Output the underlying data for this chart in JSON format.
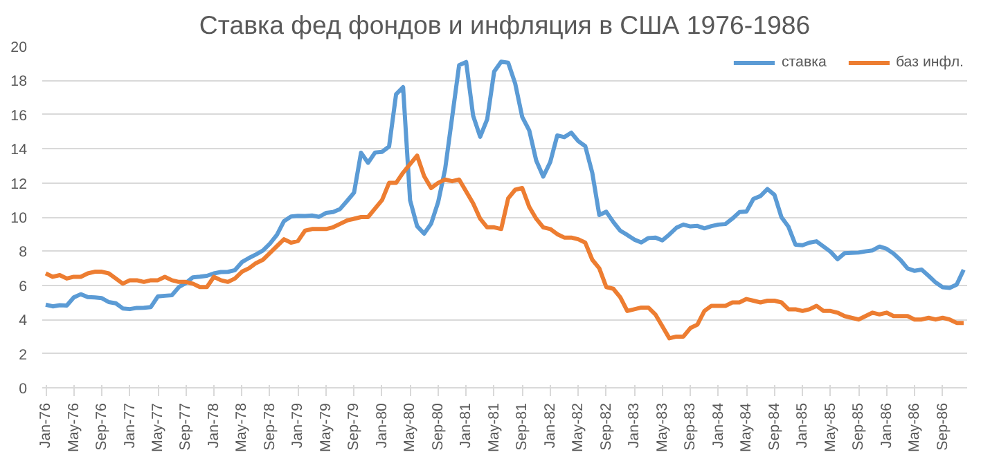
{
  "chart_data": {
    "type": "line",
    "title": "Ставка фед фондов и инфляция в США 1976-1986",
    "categories": [
      "Jan-76",
      null,
      null,
      null,
      "May-76",
      null,
      null,
      null,
      "Sep-76",
      null,
      null,
      null,
      "Jan-77",
      null,
      null,
      null,
      "May-77",
      null,
      null,
      null,
      "Sep-77",
      null,
      null,
      null,
      "Jan-78",
      null,
      null,
      null,
      "May-78",
      null,
      null,
      null,
      "Sep-78",
      null,
      null,
      null,
      "Jan-79",
      null,
      null,
      null,
      "May-79",
      null,
      null,
      null,
      "Sep-79",
      null,
      null,
      null,
      "Jan-80",
      null,
      null,
      null,
      "May-80",
      null,
      null,
      null,
      "Sep-80",
      null,
      null,
      null,
      "Jan-81",
      null,
      null,
      null,
      "May-81",
      null,
      null,
      null,
      "Sep-81",
      null,
      null,
      null,
      "Jan-82",
      null,
      null,
      null,
      "May-82",
      null,
      null,
      null,
      "Sep-82",
      null,
      null,
      null,
      "Jan-83",
      null,
      null,
      null,
      "May-83",
      null,
      null,
      null,
      "Sep-83",
      null,
      null,
      null,
      "Jan-84",
      null,
      null,
      null,
      "May-84",
      null,
      null,
      null,
      "Sep-84",
      null,
      null,
      null,
      "Jan-85",
      null,
      null,
      null,
      "May-85",
      null,
      null,
      null,
      "Sep-85",
      null,
      null,
      null,
      "Jan-86",
      null,
      null,
      null,
      "May-86",
      null,
      null,
      null,
      "Sep-86",
      null,
      null,
      null
    ],
    "series": [
      {
        "name": "ставка",
        "color": "#5b9bd5",
        "values": [
          4.87,
          4.77,
          4.84,
          4.82,
          5.29,
          5.48,
          5.31,
          5.29,
          5.25,
          5.02,
          4.95,
          4.65,
          4.61,
          4.68,
          4.69,
          4.73,
          5.35,
          5.39,
          5.42,
          5.9,
          6.14,
          6.47,
          6.51,
          6.56,
          6.7,
          6.78,
          6.79,
          6.89,
          7.36,
          7.6,
          7.81,
          8.04,
          8.45,
          8.96,
          9.76,
          10.03,
          10.07,
          10.06,
          10.09,
          10.01,
          10.24,
          10.29,
          10.47,
          10.94,
          11.43,
          13.77,
          13.18,
          13.78,
          13.82,
          14.13,
          17.19,
          17.61,
          10.98,
          9.47,
          9.03,
          9.61,
          10.87,
          12.81,
          15.85,
          18.9,
          19.08,
          15.93,
          14.7,
          15.72,
          18.52,
          19.1,
          19.04,
          17.82,
          15.87,
          15.08,
          13.31,
          12.37,
          13.22,
          14.78,
          14.68,
          14.94,
          14.45,
          14.15,
          12.59,
          10.12,
          10.31,
          9.71,
          9.2,
          8.95,
          8.68,
          8.51,
          8.77,
          8.8,
          8.63,
          8.98,
          9.37,
          9.56,
          9.45,
          9.48,
          9.34,
          9.47,
          9.56,
          9.59,
          9.91,
          10.29,
          10.32,
          11.06,
          11.23,
          11.64,
          11.3,
          9.99,
          9.43,
          8.38,
          8.35,
          8.5,
          8.58,
          8.27,
          7.97,
          7.53,
          7.88,
          7.9,
          7.92,
          7.99,
          8.05,
          8.27,
          8.14,
          7.86,
          7.48,
          6.99,
          6.85,
          6.92,
          6.56,
          6.17,
          5.89,
          5.85,
          6.04,
          6.91
        ]
      },
      {
        "name": "баз инфл.",
        "color": "#ed7d31",
        "values": [
          6.7,
          6.5,
          6.6,
          6.4,
          6.5,
          6.5,
          6.7,
          6.8,
          6.8,
          6.7,
          6.4,
          6.1,
          6.3,
          6.3,
          6.2,
          6.3,
          6.3,
          6.5,
          6.3,
          6.2,
          6.2,
          6.1,
          5.9,
          5.9,
          6.5,
          6.3,
          6.2,
          6.4,
          6.8,
          7.0,
          7.3,
          7.5,
          7.9,
          8.3,
          8.7,
          8.5,
          8.6,
          9.2,
          9.3,
          9.3,
          9.3,
          9.4,
          9.6,
          9.8,
          9.9,
          10.0,
          10.0,
          10.5,
          11.0,
          12.0,
          12.0,
          12.6,
          13.1,
          13.6,
          12.4,
          11.7,
          12.0,
          12.2,
          12.1,
          12.2,
          11.5,
          10.8,
          9.9,
          9.4,
          9.4,
          9.3,
          11.1,
          11.6,
          11.7,
          10.6,
          9.9,
          9.4,
          9.3,
          9.0,
          8.8,
          8.8,
          8.7,
          8.5,
          7.5,
          7.0,
          5.9,
          5.8,
          5.3,
          4.5,
          4.6,
          4.7,
          4.7,
          4.3,
          3.6,
          2.9,
          3.0,
          3.0,
          3.5,
          3.7,
          4.5,
          4.8,
          4.8,
          4.8,
          5.0,
          5.0,
          5.2,
          5.1,
          5.0,
          5.1,
          5.1,
          5.0,
          4.6,
          4.6,
          4.5,
          4.6,
          4.8,
          4.5,
          4.5,
          4.4,
          4.2,
          4.1,
          4.0,
          4.2,
          4.4,
          4.3,
          4.4,
          4.2,
          4.2,
          4.2,
          4.0,
          4.0,
          4.1,
          4.0,
          4.1,
          4.0,
          3.8,
          3.8
        ]
      }
    ],
    "ylim": [
      0,
      20
    ],
    "yticks": [
      0,
      2,
      4,
      6,
      8,
      10,
      12,
      14,
      16,
      18,
      20
    ],
    "grid": "y",
    "legend": "top right",
    "marker": "none",
    "line_style": "solid"
  }
}
